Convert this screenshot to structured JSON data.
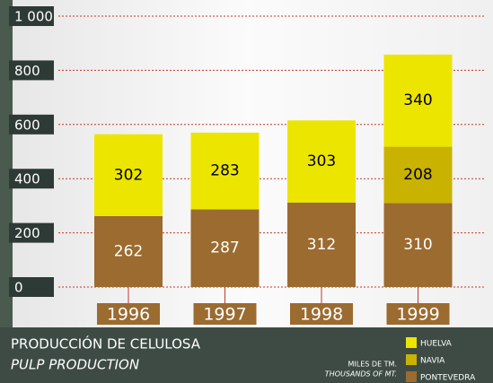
{
  "chart_data": {
    "type": "stacked-bar",
    "title": "PRODUCCIÓN DE CELULOSA",
    "subtitle": "PULP PRODUCTION",
    "unit_label": "MILES DE TM.",
    "unit_label_en": "THOUSANDS OF MT.",
    "categories": [
      "1996",
      "1997",
      "1998",
      "1999"
    ],
    "series": [
      {
        "name": "PONTEVEDRA",
        "color": "#9b6b30",
        "values": [
          262,
          287,
          312,
          310
        ]
      },
      {
        "name": "NAVIA",
        "color": "#c9b300",
        "values": [
          null,
          null,
          null,
          208
        ]
      },
      {
        "name": "HUELVA",
        "color": "#ece500",
        "values": [
          302,
          283,
          303,
          340
        ]
      }
    ],
    "ylim": [
      0,
      1000
    ],
    "yticks": [
      0,
      200,
      400,
      600,
      800,
      {
        "value": 1000,
        "label": "1 000"
      }
    ],
    "grid": true
  }
}
